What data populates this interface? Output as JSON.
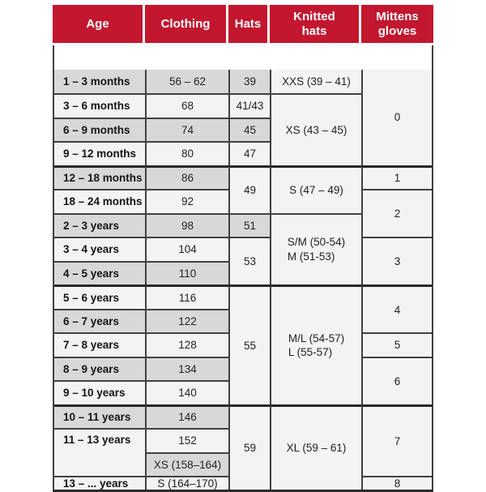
{
  "columns": [
    {
      "label": "Age"
    },
    {
      "label": "Clothing"
    },
    {
      "label": "Hats"
    },
    {
      "label": "Knitted hats"
    },
    {
      "label": "Mittens gloves"
    }
  ],
  "rows": [
    {
      "age": "1 – 3 months",
      "clothing": "56 – 62",
      "hats": "39",
      "knitted": "XXS (39 – 41)",
      "mittens": "0"
    },
    {
      "age": "3 – 6 months",
      "clothing": "68",
      "hats": "41/43",
      "knitted": "XS (43 – 45)"
    },
    {
      "age": "6 – 9 months",
      "clothing": "74",
      "hats": "45"
    },
    {
      "age": "9 – 12 months",
      "clothing": "80",
      "hats": "47"
    },
    {
      "age": "12 – 18 months",
      "clothing": "86",
      "hats": "49",
      "knitted": "S (47 – 49)",
      "mittens": "1"
    },
    {
      "age": "18 – 24 months",
      "clothing": "92",
      "mittens": "2"
    },
    {
      "age": "2 – 3 years",
      "clothing": "98",
      "hats": "51",
      "knitted_lines": [
        "S/M (50-54)",
        "M (51-53)"
      ]
    },
    {
      "age": "3 – 4 years",
      "clothing": "104",
      "hats": "53",
      "mittens": "3"
    },
    {
      "age": "4 – 5 years",
      "clothing": "110"
    },
    {
      "age": "5 – 6 years",
      "clothing": "116",
      "hats": "55",
      "knitted_lines": [
        "M/L (54-57)",
        "L (55-57)"
      ],
      "mittens": "4"
    },
    {
      "age": "6 – 7 years",
      "clothing": "122"
    },
    {
      "age": "7 – 8 years",
      "clothing": "128",
      "mittens": "5"
    },
    {
      "age": "8 – 9 years",
      "clothing": "134",
      "mittens": "6"
    },
    {
      "age": "9 – 10 years",
      "clothing": "140"
    },
    {
      "age": "10 – 11 years",
      "clothing": "146",
      "hats": "59",
      "knitted": "XL (59 – 61)",
      "mittens": "7"
    },
    {
      "age": "11 – 13 years",
      "clothing": "152"
    },
    {
      "clothing": "XS (158–164)"
    },
    {
      "age": "13 – ... years",
      "clothing": "S (164–170)",
      "mittens": "8"
    }
  ],
  "colors": {
    "header_red": "#c2172e",
    "row_gray": "#d8d8d8",
    "row_light": "#f3f3f3",
    "border": "#414141"
  }
}
